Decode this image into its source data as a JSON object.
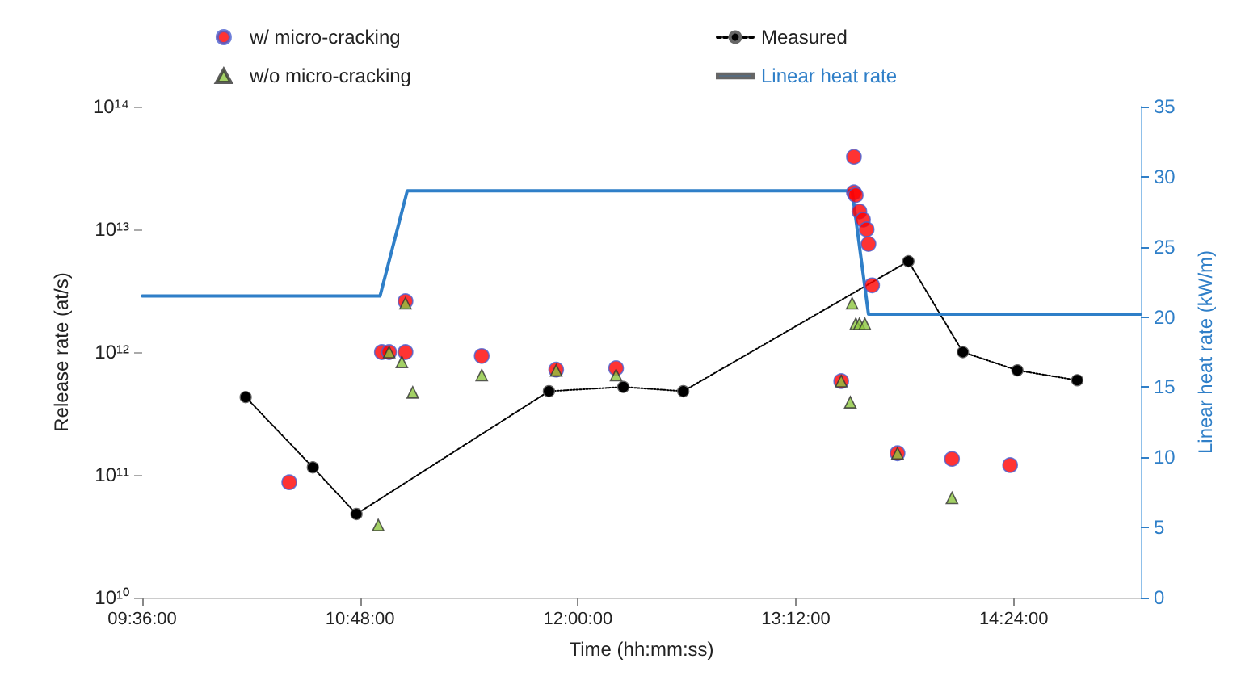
{
  "chart_data": {
    "type": "scatter",
    "xlabel": "Time (hh:mm:ss)",
    "ylabel": "Release rate (at/s)",
    "y2label": "Linear heat rate (kW/m)",
    "xlim": [
      9.6,
      15.1
    ],
    "xticks": [
      {
        "value": 9.6,
        "label": "09:36:00"
      },
      {
        "value": 10.8,
        "label": "10:48:00"
      },
      {
        "value": 12.0,
        "label": "12:00:00"
      },
      {
        "value": 13.2,
        "label": "13:12:00"
      },
      {
        "value": 14.4,
        "label": "14:24:00"
      }
    ],
    "log": "y",
    "ylim": [
      10000000000.0,
      100000000000000.0
    ],
    "yticks": [
      {
        "value": 10000000000.0,
        "label": "10¹⁰"
      },
      {
        "value": 100000000000.0,
        "label": "10¹¹"
      },
      {
        "value": 1000000000000.0,
        "label": "10¹²"
      },
      {
        "value": 10000000000000.0,
        "label": "10¹³"
      },
      {
        "value": 100000000000000.0,
        "label": "10¹⁴"
      }
    ],
    "y2lim": [
      0,
      35
    ],
    "y2ticks": [
      0,
      5,
      10,
      15,
      20,
      25,
      30,
      35
    ],
    "grid": false,
    "legend": "top",
    "series": [
      {
        "name": "w/ micro-cracking",
        "marker": "circle",
        "color": "#ff0000",
        "x": [
          10.41,
          10.92,
          10.96,
          11.05,
          11.05,
          11.47,
          11.88,
          12.21,
          13.52,
          13.52,
          13.53,
          13.55,
          13.57,
          13.59,
          13.6,
          13.62,
          13.45,
          13.76,
          14.06,
          14.38
        ],
        "values": [
          87000000000.0,
          1000000000000.0,
          1000000000000.0,
          1000000000000.0,
          2600000000000.0,
          930000000000.0,
          720000000000.0,
          740000000000.0,
          39000000000000.0,
          20000000000000.0,
          19000000000000.0,
          14000000000000.0,
          12000000000000.0,
          10000000000000.0,
          7600000000000.0,
          3500000000000.0,
          580000000000.0,
          150000000000.0,
          135000000000.0,
          120000000000.0
        ]
      },
      {
        "name": "Measured",
        "type": "line",
        "marker": "circle",
        "line_style": "dotted",
        "color": "#000000",
        "x": [
          10.17,
          10.54,
          10.78,
          11.84,
          12.25,
          12.58,
          13.82,
          14.12,
          14.42,
          14.75
        ],
        "values": [
          430000000000.0,
          115000000000.0,
          48000000000.0,
          480000000000.0,
          520000000000.0,
          480000000000.0,
          5500000000000.0,
          1000000000000.0,
          710000000000.0,
          590000000000.0
        ]
      },
      {
        "name": "w/o micro-cracking",
        "marker": "triangle",
        "color": "#8cc63f",
        "x": [
          10.96,
          11.03,
          11.05,
          11.09,
          11.47,
          11.88,
          12.21,
          10.9,
          13.51,
          13.53,
          13.55,
          13.58,
          13.5,
          13.45,
          13.76,
          14.06
        ],
        "values": [
          1000000000000.0,
          830000000000.0,
          2500000000000.0,
          470000000000.0,
          650000000000.0,
          710000000000.0,
          650000000000.0,
          39000000000.0,
          2500000000000.0,
          1700000000000.0,
          1700000000000.0,
          1700000000000.0,
          390000000000.0,
          580000000000.0,
          150000000000.0,
          65000000000.0
        ]
      },
      {
        "name": "Linear heat rate",
        "type": "line",
        "marker": "none",
        "line_style": "solid",
        "axis": "y2",
        "color": "#2f7fc8",
        "x": [
          9.6,
          10.91,
          11.06,
          13.51,
          13.6,
          15.1
        ],
        "values": [
          21.5,
          21.5,
          29,
          29,
          20.2,
          20.2
        ]
      }
    ]
  }
}
